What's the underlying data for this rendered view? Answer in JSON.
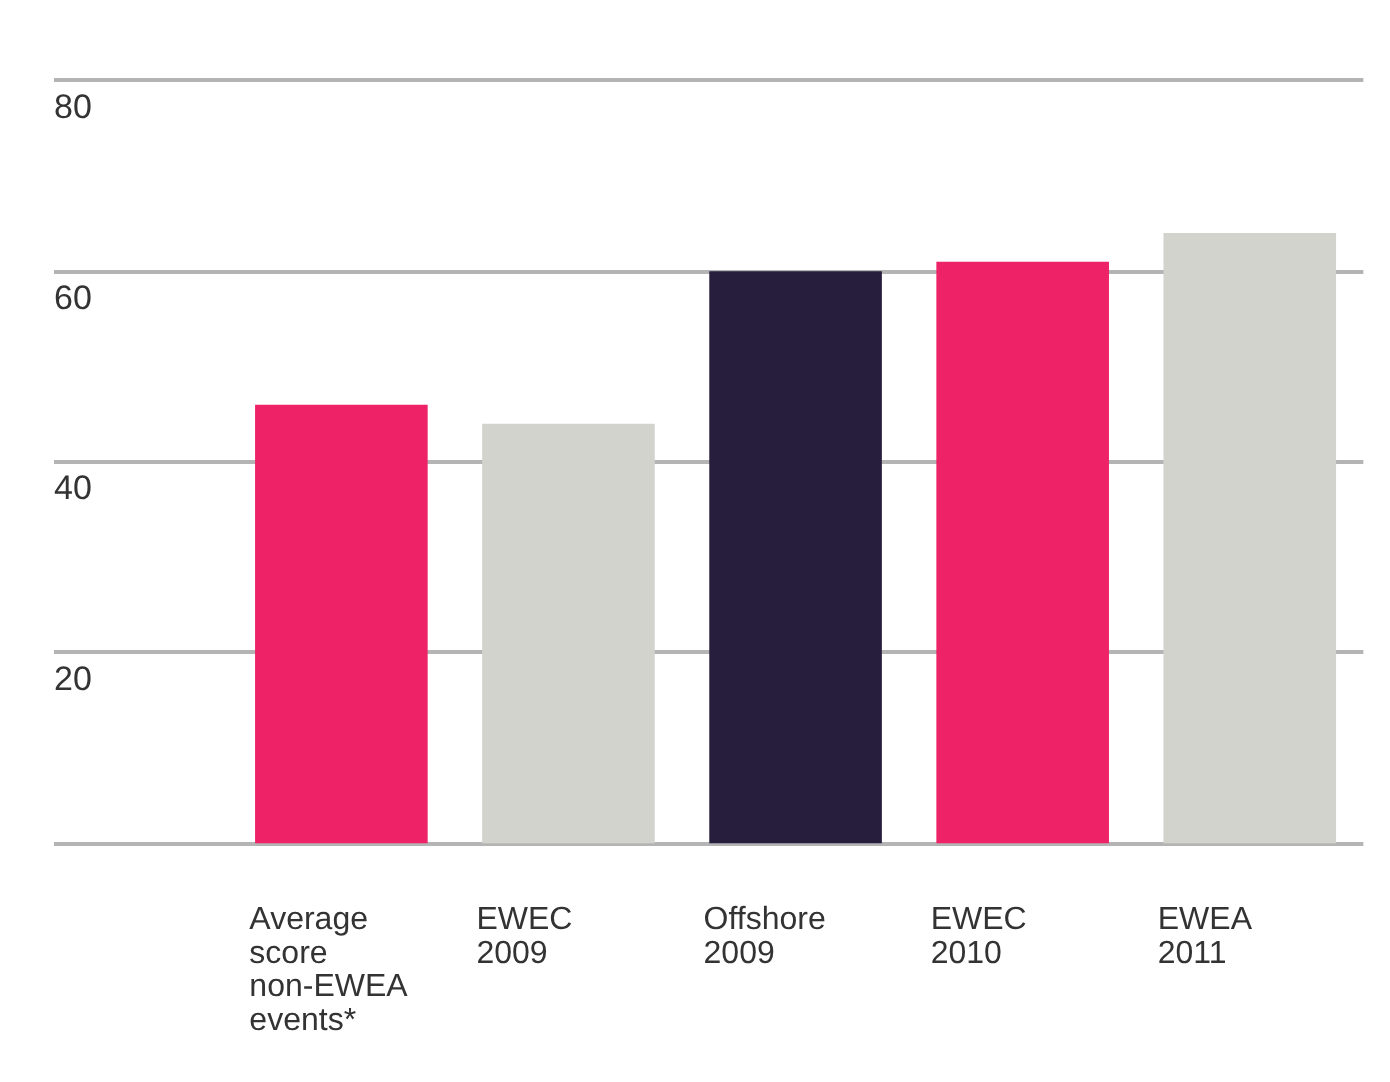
{
  "chart_data": {
    "type": "bar",
    "categories": [
      "Average score non-EWEA events*",
      "EWEC 2009",
      "Offshore 2009",
      "EWEC 2010",
      "EWEA 2011"
    ],
    "values": [
      46,
      44,
      60,
      61,
      64
    ],
    "colors": [
      "#ee2266",
      "#d3d3ce",
      "#261e3c",
      "#ee2266",
      "#d3d3ce"
    ],
    "ylim": [
      0,
      80
    ],
    "yticks": [
      20,
      40,
      60,
      80
    ],
    "grid": "y",
    "legend": false
  }
}
